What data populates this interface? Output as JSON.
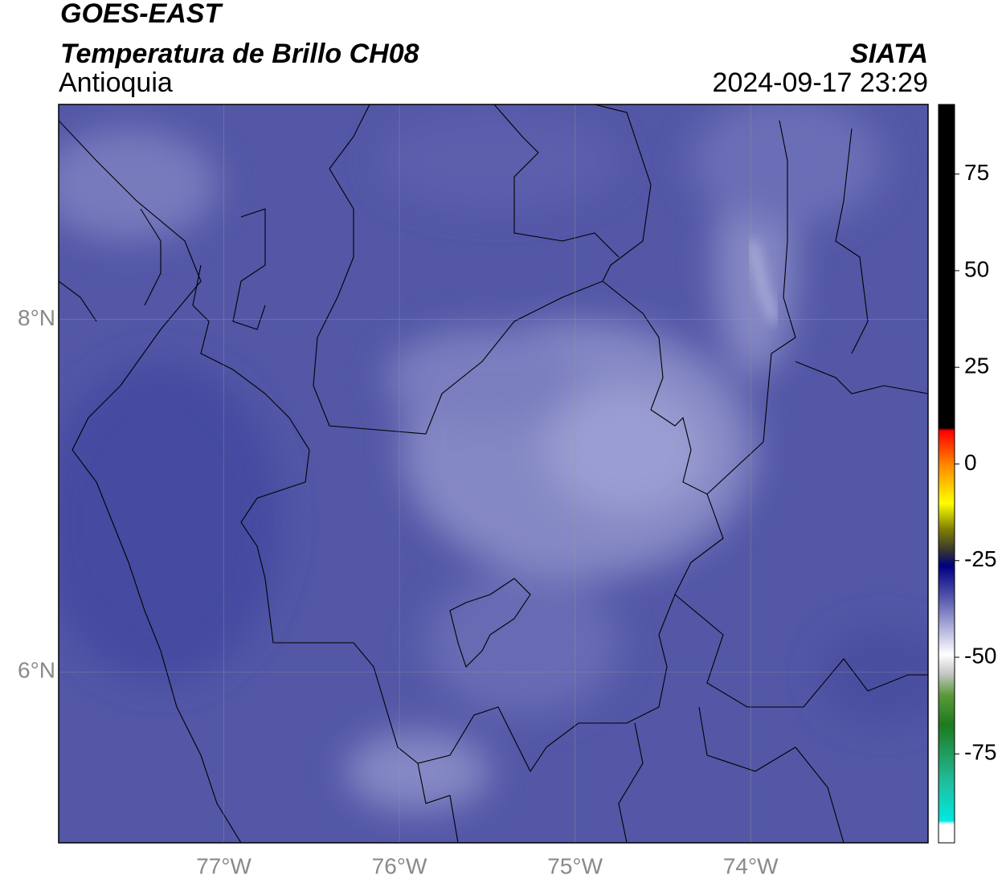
{
  "header": {
    "title": "GOES-EAST",
    "subtitle": "Temperatura de Brillo CH08",
    "region": "Antioquia",
    "source": "SIATA",
    "datetime": "2024-09-17 23:29"
  },
  "map": {
    "xlim": [
      -77.94,
      -72.99
    ],
    "ylim": [
      5.03,
      9.22
    ],
    "xticks": [
      {
        "value": -77,
        "label": "77°W"
      },
      {
        "value": -76,
        "label": "76°W"
      },
      {
        "value": -75,
        "label": "75°W"
      },
      {
        "value": -74,
        "label": "74°W"
      }
    ],
    "yticks": [
      {
        "value": 6,
        "label": "6°N"
      },
      {
        "value": 8,
        "label": "8°N"
      }
    ],
    "grid": true
  },
  "colorbar": {
    "lim": [
      -98,
      93
    ],
    "ticks": [
      75,
      50,
      25,
      0,
      -25,
      -50,
      -75
    ]
  }
}
